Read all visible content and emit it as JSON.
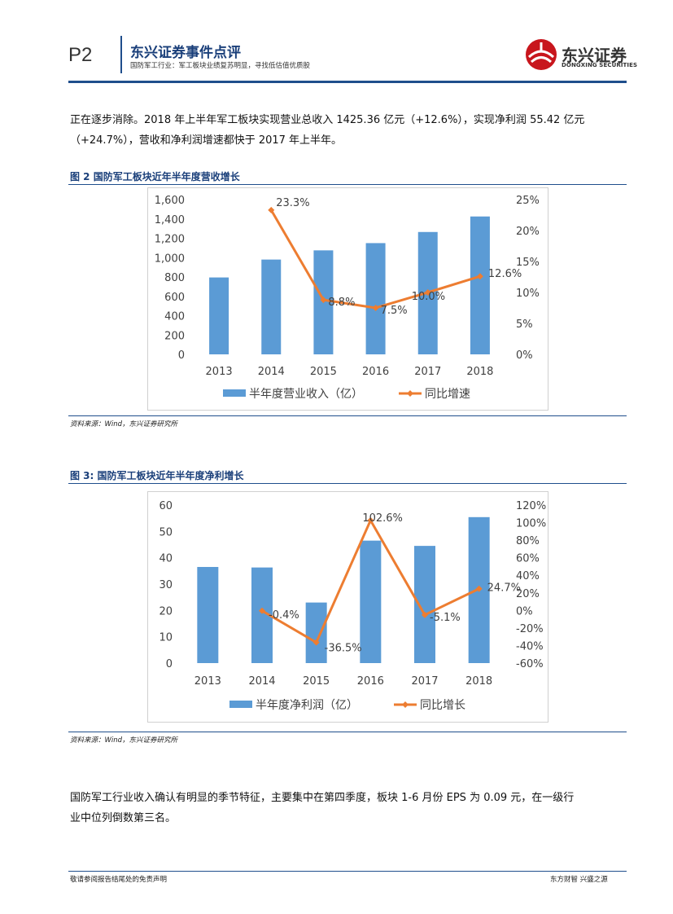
{
  "header": {
    "page_num": "P2",
    "title": "东兴证券事件点评",
    "subtitle": "国防军工行业：军工板块业绩复苏明显，寻找低估值优质股",
    "logo_text": "东兴证券",
    "logo_en": "DONGXING SECURITIES"
  },
  "body": {
    "para1_line1": "正在逐步消除。2018 年上半年军工板块实现营业总收入 1425.36 亿元（+12.6%），实现净利润 55.42 亿元",
    "para1_line2": "（+24.7%），营收和净利润增速都快于 2017 年上半年。",
    "para2_line1": "国防军工行业收入确认有明显的季节特征，主要集中在第四季度，板块 1-6 月份 EPS 为 0.09 元，在一级行",
    "para2_line2": "业中位列倒数第三名。"
  },
  "figures": {
    "fig2_title": "图 2 国防军工板块近年半年度营收增长",
    "fig2_source": "资料来源：Wind，东兴证券研究所",
    "fig3_title": "图 3: 国防军工板块近年半年度净利增长",
    "fig3_source": "资料来源：Wind，东兴证券研究所"
  },
  "footer": {
    "left": "敬请参阅报告结尾处的免责声明",
    "right": "东方财智 兴盛之源"
  },
  "colors": {
    "bar": "#5b9bd5",
    "line": "#ed7d31",
    "brand": "#1f4e8c",
    "logo_red": "#c8161d"
  },
  "chart_data": [
    {
      "type": "bar",
      "categories": [
        "2013",
        "2014",
        "2015",
        "2016",
        "2017",
        "2018"
      ],
      "series": [
        {
          "name": "半年度营业收入（亿）",
          "type": "bar",
          "axis": "left",
          "values": [
            795,
            980,
            1075,
            1150,
            1265,
            1425.36
          ]
        },
        {
          "name": "同比增速",
          "type": "line",
          "axis": "right",
          "values": [
            null,
            23.3,
            8.8,
            7.5,
            10.0,
            12.6
          ],
          "labels": [
            "",
            "23.3%",
            "8.8%",
            "7.5%",
            "10.0%",
            "12.6%"
          ]
        }
      ],
      "y_left": {
        "min": 0,
        "max": 1600,
        "ticks": [
          "0",
          "200",
          "400",
          "600",
          "800",
          "1,000",
          "1,200",
          "1,400",
          "1,600"
        ]
      },
      "y_right": {
        "min": 0,
        "max": 25,
        "ticks": [
          "0%",
          "5%",
          "10%",
          "15%",
          "20%",
          "25%"
        ]
      },
      "legend": "bottom"
    },
    {
      "type": "bar",
      "categories": [
        "2013",
        "2014",
        "2015",
        "2016",
        "2017",
        "2018"
      ],
      "series": [
        {
          "name": "半年度净利润（亿）",
          "type": "bar",
          "axis": "left",
          "values": [
            36.5,
            36.3,
            23,
            46.5,
            44.5,
            55.42
          ]
        },
        {
          "name": "同比增长",
          "type": "line",
          "axis": "right",
          "values": [
            null,
            -0.4,
            -36.5,
            102.6,
            -5.1,
            24.7
          ],
          "labels": [
            "",
            "-0.4%",
            "-36.5%",
            "102.6%",
            "-5.1%",
            "24.7%"
          ]
        }
      ],
      "y_left": {
        "min": 0,
        "max": 60,
        "ticks": [
          "0",
          "10",
          "20",
          "30",
          "40",
          "50",
          "60"
        ]
      },
      "y_right": {
        "min": -60,
        "max": 120,
        "ticks": [
          "-60%",
          "-40%",
          "-20%",
          "0%",
          "20%",
          "40%",
          "60%",
          "80%",
          "100%",
          "120%"
        ]
      },
      "legend": "bottom"
    }
  ]
}
